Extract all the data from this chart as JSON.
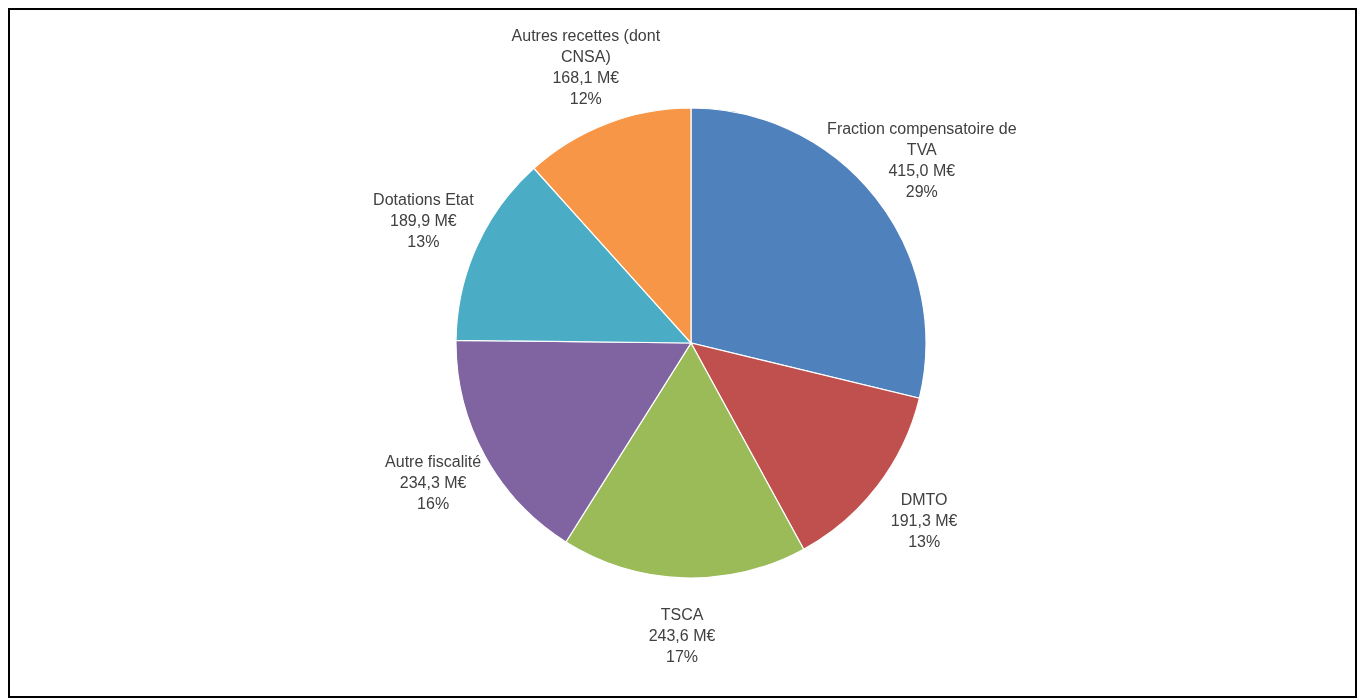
{
  "chart_data": {
    "type": "pie",
    "categories": [
      "Fraction compensatoire de TVA",
      "DMTO",
      "TSCA",
      "Autre fiscalité",
      "Dotations Etat",
      "Autres recettes (dont CNSA)"
    ],
    "values": [
      415.0,
      191.3,
      243.6,
      234.3,
      189.9,
      168.1
    ],
    "colors": [
      "#4f81bd",
      "#c0504d",
      "#9bbb59",
      "#8064a2",
      "#4bacc6",
      "#f79646"
    ],
    "value_labels": [
      "415,0 M€\n29%",
      "191,3 M€\n13%",
      "243,6 M€\n17%",
      "234,3 M€\n16%",
      "189,9 M€\n13%",
      "168,1 M€\n12%"
    ]
  }
}
